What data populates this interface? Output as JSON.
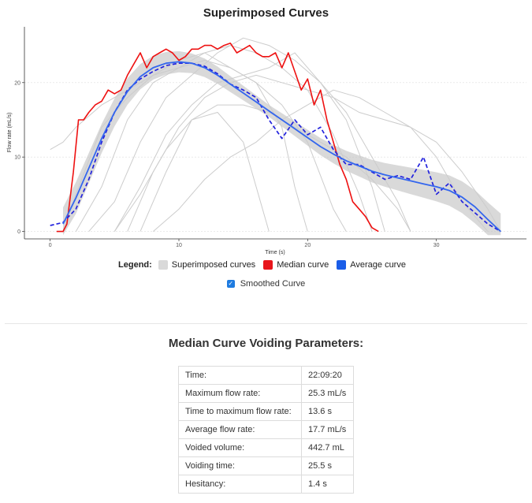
{
  "chart_data": {
    "type": "line",
    "title": "Superimposed Curves",
    "xlabel": "Time (s)",
    "ylabel": "Flow rate (mL/s)",
    "xlim": [
      -2,
      37
    ],
    "ylim": [
      -1,
      27.5
    ],
    "xticks": [
      "0",
      "10",
      "20",
      "30"
    ],
    "yticks": [
      "0",
      "10",
      "20"
    ],
    "grid": "horizontal dotted",
    "legend_position": "bottom",
    "series": [
      {
        "name": "Superimposed curves",
        "color": "#cccccc",
        "style": "solid",
        "x": [
          0,
          1,
          2,
          4,
          6,
          8,
          10,
          12,
          14,
          16,
          18,
          19,
          20
        ],
        "y": [
          11,
          12,
          14,
          17,
          19,
          21,
          22,
          23,
          22,
          20,
          14,
          6,
          0
        ]
      },
      {
        "name": "Superimposed curves",
        "color": "#cccccc",
        "style": "solid",
        "x": [
          1,
          2,
          4,
          6,
          8,
          10,
          12,
          14,
          16,
          18,
          20,
          22,
          23
        ],
        "y": [
          0,
          5,
          14,
          18,
          21,
          23,
          24,
          22,
          20,
          17,
          12,
          3,
          0
        ]
      },
      {
        "name": "Superimposed curves",
        "color": "#cccccc",
        "style": "solid",
        "x": [
          2,
          4,
          6,
          8,
          10,
          12,
          14,
          16,
          18,
          20,
          22,
          24,
          25
        ],
        "y": [
          0,
          6,
          15,
          20,
          22,
          24,
          25,
          24,
          22,
          19,
          13,
          5,
          0
        ]
      },
      {
        "name": "Superimposed curves",
        "color": "#cccccc",
        "style": "solid",
        "x": [
          3,
          5,
          7,
          9,
          11,
          13,
          15,
          17,
          19,
          21,
          23,
          25,
          26
        ],
        "y": [
          0,
          4,
          12,
          18,
          21,
          24,
          26,
          25,
          23,
          20,
          15,
          6,
          0
        ]
      },
      {
        "name": "Superimposed curves",
        "color": "#cccccc",
        "style": "solid",
        "x": [
          5,
          7,
          9,
          11,
          13,
          15,
          17,
          19,
          21,
          23,
          25,
          27,
          28
        ],
        "y": [
          0,
          6,
          13,
          17,
          20,
          21,
          22,
          24,
          20,
          16,
          10,
          4,
          0
        ]
      },
      {
        "name": "Superimposed curves",
        "color": "#cccccc",
        "style": "solid",
        "x": [
          6,
          8,
          10,
          12,
          14,
          16,
          18,
          20,
          22,
          24,
          26,
          28,
          30,
          32,
          34
        ],
        "y": [
          0,
          8,
          14,
          18,
          20,
          21,
          20,
          19,
          18,
          16,
          15,
          14,
          10,
          4,
          0
        ]
      },
      {
        "name": "Superimposed curves",
        "color": "#cccccc",
        "style": "solid",
        "x": [
          5,
          7,
          9,
          11,
          13,
          15,
          17,
          19,
          21,
          23,
          25,
          27,
          28
        ],
        "y": [
          0,
          5,
          11,
          15,
          17,
          17,
          16,
          14,
          12,
          10,
          7,
          3,
          0
        ]
      },
      {
        "name": "Superimposed curves",
        "color": "#cccccc",
        "style": "solid",
        "x": [
          7,
          9,
          11,
          13,
          15,
          16,
          17
        ],
        "y": [
          0,
          8,
          15,
          16,
          12,
          6,
          0
        ]
      },
      {
        "name": "Superimposed curves",
        "color": "#cccccc",
        "style": "solid",
        "x": [
          8,
          10,
          12,
          14,
          16,
          18,
          20,
          22,
          24,
          26,
          28,
          30,
          32,
          34,
          35
        ],
        "y": [
          0,
          3,
          7,
          10,
          12,
          15,
          17,
          19,
          18,
          16,
          14,
          12,
          8,
          3,
          0
        ]
      },
      {
        "name": "Median curve",
        "color": "#ee1111",
        "style": "solid",
        "x": [
          0.5,
          1,
          1.3,
          1.8,
          2.2,
          2.6,
          3,
          3.5,
          4,
          4.5,
          5,
          5.5,
          6,
          6.5,
          7,
          7.5,
          8,
          8.5,
          9,
          9.5,
          10,
          10.5,
          11,
          11.5,
          12,
          12.5,
          13,
          13.5,
          14,
          14.5,
          15,
          15.5,
          16,
          16.5,
          17,
          17.5,
          18,
          18.5,
          19,
          19.5,
          20,
          20.5,
          21,
          21.5,
          22,
          22.5,
          23,
          23.5,
          24,
          24.5,
          25,
          25.5
        ],
        "y": [
          0,
          0,
          1,
          8,
          15,
          15,
          16,
          17,
          17.5,
          19,
          18.5,
          19,
          21,
          22.5,
          24,
          22,
          23.5,
          24,
          24.5,
          24,
          23,
          23.5,
          24.5,
          24.5,
          25,
          25,
          24.5,
          25,
          25.3,
          24,
          24.5,
          25,
          24,
          23.5,
          23.5,
          24,
          22,
          24,
          21.5,
          19,
          20.5,
          17,
          19,
          15,
          12,
          9,
          7,
          4,
          3,
          2,
          0.5,
          0
        ]
      },
      {
        "name": "Average curve",
        "color": "#2222dd",
        "style": "dashed",
        "x": [
          0,
          1,
          2,
          3,
          4,
          5,
          6,
          7,
          8,
          9,
          10,
          11,
          12,
          13,
          14,
          15,
          16,
          17,
          18,
          19,
          20,
          21,
          22,
          23,
          24,
          25,
          26,
          27,
          28,
          29,
          30,
          31,
          32,
          33,
          34,
          35
        ],
        "y": [
          0.8,
          1.2,
          3,
          7,
          12,
          16,
          19,
          20.5,
          21.5,
          22.3,
          22.6,
          22.6,
          22.2,
          21.2,
          19.8,
          19,
          18,
          15,
          12.5,
          15,
          13,
          14,
          11,
          9,
          9,
          8,
          7,
          7.5,
          7,
          10,
          5,
          6.5,
          4,
          2.5,
          1,
          0
        ]
      },
      {
        "name": "Smoothed Curve",
        "color": "#3366ee",
        "style": "solid",
        "x": [
          1,
          2,
          3,
          4,
          5,
          6,
          7,
          8,
          9,
          10,
          11,
          12,
          13,
          14,
          15,
          16,
          17,
          18,
          19,
          20,
          21,
          22,
          23,
          24,
          25,
          26,
          27,
          28,
          29,
          30,
          31,
          32,
          33,
          34,
          35
        ],
        "y": [
          1,
          4.5,
          8.5,
          12.5,
          16,
          18.8,
          20.8,
          22,
          22.6,
          22.8,
          22.6,
          22,
          21,
          19.8,
          18.6,
          17.4,
          16.2,
          15,
          13.8,
          12.6,
          11.4,
          10.4,
          9.5,
          8.8,
          8.1,
          7.6,
          7.2,
          6.8,
          6.4,
          6,
          5.5,
          4.6,
          3.3,
          1.6,
          0
        ]
      }
    ]
  },
  "legend": {
    "title": "Legend:",
    "items": [
      {
        "label": "Superimposed curves",
        "color": "#d9d9d9"
      },
      {
        "label": "Median curve",
        "color": "#e8151b"
      },
      {
        "label": "Average curve",
        "color": "#1a5de8"
      }
    ],
    "smoothed_label": "Smoothed Curve",
    "smoothed_checked": true
  },
  "params": {
    "title": "Median Curve Voiding Parameters:",
    "rows": [
      {
        "name": "Time:",
        "value": "22:09:20"
      },
      {
        "name": "Maximum flow rate:",
        "value": "25.3 mL/s"
      },
      {
        "name": "Time to maximum flow rate:",
        "value": "13.6 s"
      },
      {
        "name": "Average flow rate:",
        "value": "17.7 mL/s"
      },
      {
        "name": "Voided volume:",
        "value": "442.7 mL"
      },
      {
        "name": "Voiding time:",
        "value": "25.5 s"
      },
      {
        "name": "Hesitancy:",
        "value": "1.4 s"
      }
    ]
  }
}
